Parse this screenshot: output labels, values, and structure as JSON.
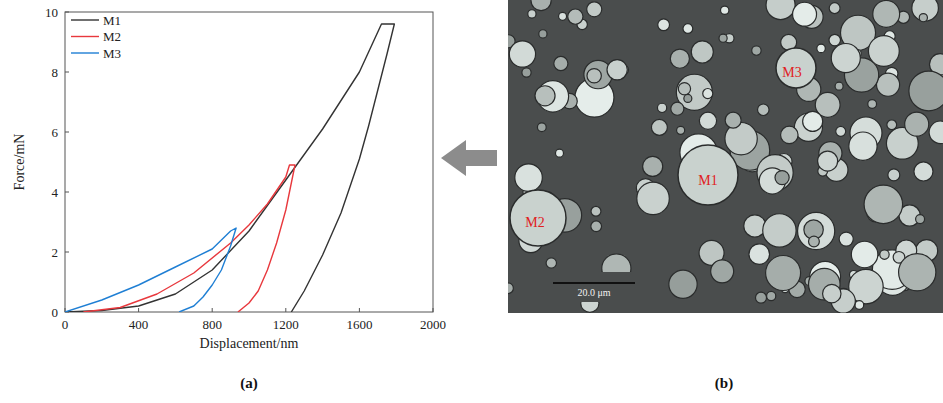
{
  "chart_data": {
    "type": "line",
    "x_label": "Displacement/nm",
    "y_label": "Force/mN",
    "xlim": [
      0,
      2000
    ],
    "xticks": [
      0,
      400,
      800,
      1200,
      1600,
      2000
    ],
    "ylim": [
      0,
      10
    ],
    "yticks": [
      0,
      2,
      4,
      6,
      8,
      10
    ],
    "grid": false,
    "legend": "top-left",
    "series": [
      {
        "name": "M1",
        "color": "#333333",
        "x": [
          0,
          200,
          400,
          600,
          800,
          1000,
          1200,
          1400,
          1600,
          1720,
          1790,
          1750,
          1700,
          1650,
          1600,
          1500,
          1400,
          1300,
          1230
        ],
        "values": [
          0,
          0.05,
          0.2,
          0.6,
          1.4,
          2.7,
          4.4,
          6.1,
          8.0,
          9.6,
          9.6,
          8.6,
          7.4,
          6.2,
          5.1,
          3.3,
          1.9,
          0.7,
          0
        ]
      },
      {
        "name": "M2",
        "color": "#e8383d",
        "x": [
          100,
          300,
          500,
          700,
          900,
          1000,
          1100,
          1200,
          1220,
          1250,
          1200,
          1150,
          1100,
          1050,
          1000,
          940
        ],
        "values": [
          0,
          0.15,
          0.6,
          1.3,
          2.3,
          2.9,
          3.6,
          4.5,
          4.9,
          4.9,
          3.4,
          2.3,
          1.4,
          0.7,
          0.3,
          0
        ]
      },
      {
        "name": "M3",
        "color": "#1f7fd4",
        "x": [
          0,
          200,
          400,
          600,
          800,
          900,
          930,
          900,
          850,
          800,
          750,
          700,
          620
        ],
        "values": [
          0,
          0.4,
          0.9,
          1.5,
          2.1,
          2.7,
          2.8,
          2.2,
          1.4,
          0.9,
          0.5,
          0.2,
          0
        ]
      }
    ]
  },
  "image_panel": {
    "labels": [
      "M1",
      "M2",
      "M3"
    ],
    "scale_bar": "20.0 μm"
  },
  "panel_letters": [
    "(a)",
    "(b)"
  ]
}
